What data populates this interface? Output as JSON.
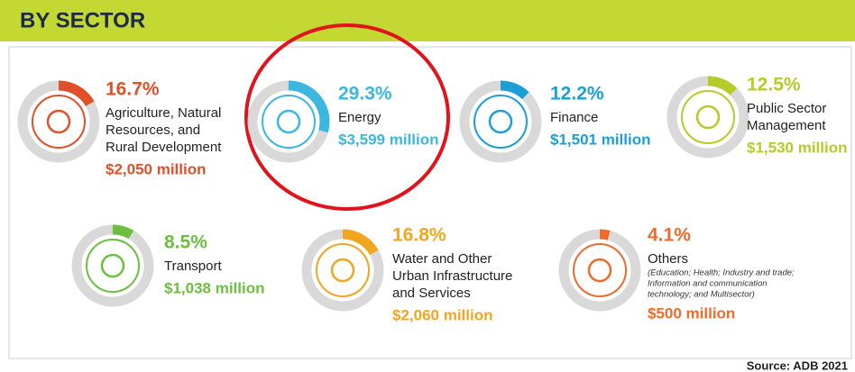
{
  "header": {
    "title": "BY SECTOR"
  },
  "sectors": [
    {
      "value": 16.7,
      "value_label": "16.7%",
      "name_lines": [
        "Agriculture, Natural",
        "Resources, and",
        "Rural Development"
      ],
      "amount": "$2,050 million",
      "color": "#e0502a"
    },
    {
      "value": 29.3,
      "value_label": "29.3%",
      "name_lines": [
        "Energy"
      ],
      "amount": "$3,599 million",
      "color": "#3bb7e0"
    },
    {
      "value": 12.2,
      "value_label": "12.2%",
      "name_lines": [
        "Finance"
      ],
      "amount": "$1,501 million",
      "color": "#1a9fd6"
    },
    {
      "value": 12.5,
      "value_label": "12.5%",
      "name_lines": [
        "Public Sector",
        "Management"
      ],
      "amount": "$1,530 million",
      "color": "#b5cc28"
    },
    {
      "value": 8.5,
      "value_label": "8.5%",
      "name_lines": [
        "Transport"
      ],
      "amount": "$1,038 million",
      "color": "#6cbf3f"
    },
    {
      "value": 16.8,
      "value_label": "16.8%",
      "name_lines": [
        "Water and Other",
        "Urban Infrastructure",
        "and Services"
      ],
      "amount": "$2,060 million",
      "color": "#f2a51f"
    },
    {
      "value": 4.1,
      "value_label": "4.1%",
      "name_lines": [
        "Others"
      ],
      "note_lines": [
        "(Education; Health; Industry and trade;",
        "Information and communication",
        "technology; and Multisector)"
      ],
      "amount": "$500 million",
      "color": "#ee6b2a"
    }
  ],
  "source": "Source: ADB 2021"
}
